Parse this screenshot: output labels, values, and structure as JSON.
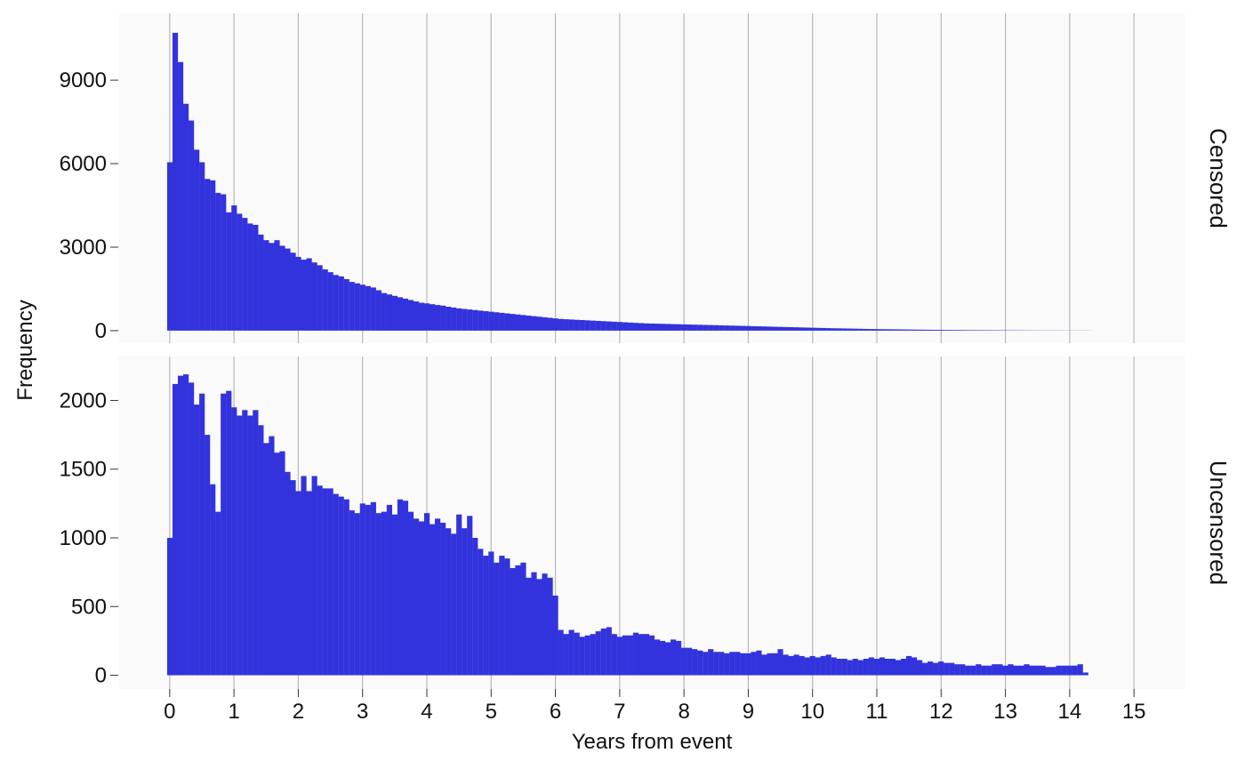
{
  "chart_data": {
    "type": "bar",
    "subtype": "faceted-histogram",
    "xlabel": "Years from event",
    "ylabel": "Frequency",
    "xlim": [
      -0.8,
      15.8
    ],
    "x_ticks": [
      0,
      1,
      2,
      3,
      4,
      5,
      6,
      7,
      8,
      9,
      10,
      11,
      12,
      13,
      14,
      15
    ],
    "bin_width": 0.0833,
    "bin_start": -0.04,
    "grid": "vertical-major",
    "bar_color": "#3333dd",
    "panel_background": "#fafafa",
    "facets": [
      {
        "label": "Censored",
        "ylim": [
          -450,
          11400
        ],
        "y_ticks": [
          0,
          3000,
          6000,
          9000
        ],
        "values": [
          6050,
          10700,
          9650,
          8150,
          7550,
          6500,
          6050,
          5450,
          5400,
          4950,
          4900,
          4250,
          4500,
          4200,
          4050,
          3850,
          3800,
          3450,
          3250,
          3150,
          3250,
          3050,
          2950,
          2800,
          2650,
          2550,
          2600,
          2450,
          2350,
          2200,
          2100,
          2000,
          1950,
          1850,
          1750,
          1700,
          1650,
          1600,
          1550,
          1450,
          1350,
          1300,
          1250,
          1200,
          1150,
          1100,
          1050,
          1000,
          980,
          950,
          920,
          900,
          860,
          830,
          800,
          780,
          760,
          740,
          720,
          700,
          680,
          660,
          640,
          620,
          600,
          580,
          560,
          540,
          520,
          500,
          480,
          460,
          440,
          420,
          410,
          400,
          390,
          380,
          370,
          360,
          350,
          340,
          330,
          320,
          310,
          300,
          290,
          280,
          270,
          260,
          255,
          250,
          245,
          240,
          235,
          230,
          225,
          220,
          215,
          210,
          205,
          200,
          195,
          190,
          185,
          180,
          175,
          170,
          165,
          160,
          155,
          150,
          145,
          140,
          135,
          130,
          125,
          120,
          115,
          110,
          105,
          100,
          95,
          90,
          85,
          82,
          78,
          75,
          70,
          66,
          62,
          58,
          55,
          52,
          50,
          48,
          45,
          42,
          40,
          38,
          36,
          34,
          32,
          30,
          28,
          26,
          25,
          24,
          22,
          20,
          19,
          18,
          17,
          16,
          15,
          14,
          13,
          12,
          11,
          10,
          9,
          8,
          8,
          7,
          7,
          6,
          6,
          5,
          5,
          5,
          4,
          4,
          3
        ]
      },
      {
        "label": "Uncensored",
        "ylim": [
          -100,
          2320
        ],
        "y_ticks": [
          0,
          500,
          1000,
          1500,
          2000
        ],
        "values": [
          1000,
          2120,
          2180,
          2190,
          2130,
          1970,
          2050,
          1750,
          1390,
          1190,
          2050,
          2070,
          1950,
          1890,
          1930,
          1890,
          1930,
          1820,
          1690,
          1740,
          1620,
          1630,
          1480,
          1420,
          1340,
          1450,
          1340,
          1450,
          1380,
          1360,
          1360,
          1320,
          1300,
          1280,
          1200,
          1180,
          1250,
          1240,
          1260,
          1180,
          1190,
          1240,
          1170,
          1280,
          1270,
          1190,
          1140,
          1120,
          1180,
          1100,
          1140,
          1110,
          1070,
          1030,
          1170,
          1070,
          1160,
          1000,
          920,
          870,
          900,
          820,
          870,
          850,
          780,
          800,
          820,
          710,
          750,
          700,
          740,
          710,
          580,
          330,
          300,
          330,
          310,
          280,
          290,
          300,
          320,
          340,
          350,
          300,
          280,
          290,
          290,
          310,
          300,
          300,
          290,
          260,
          250,
          240,
          260,
          250,
          200,
          200,
          190,
          180,
          170,
          190,
          170,
          170,
          160,
          170,
          170,
          160,
          160,
          170,
          180,
          150,
          160,
          160,
          190,
          150,
          140,
          150,
          140,
          130,
          140,
          130,
          140,
          150,
          130,
          120,
          120,
          110,
          120,
          110,
          120,
          130,
          120,
          130,
          120,
          120,
          110,
          120,
          140,
          130,
          110,
          90,
          100,
          90,
          100,
          90,
          90,
          80,
          80,
          70,
          70,
          80,
          70,
          70,
          80,
          80,
          70,
          80,
          70,
          70,
          80,
          70,
          70,
          70,
          60,
          60,
          70,
          70,
          70,
          70,
          80,
          20
        ]
      }
    ]
  }
}
